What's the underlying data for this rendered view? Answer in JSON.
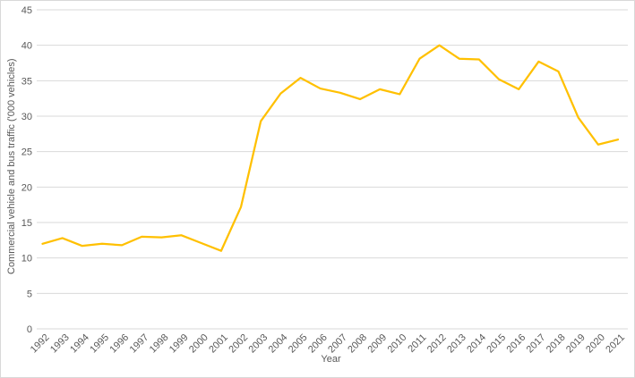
{
  "chart_data": {
    "type": "line",
    "xlabel": "Year",
    "ylabel": "Commercial vehicle and bus traffic ('000 vehicles)",
    "x": [
      "1992",
      "1993",
      "1994",
      "1995",
      "1996",
      "1997",
      "1998",
      "1999",
      "2000",
      "2001",
      "2002",
      "2003",
      "2004",
      "2005",
      "2006",
      "2007",
      "2008",
      "2009",
      "2010",
      "2011",
      "2012",
      "2013",
      "2014",
      "2015",
      "2016",
      "2017",
      "2018",
      "2019",
      "2020",
      "2021"
    ],
    "series": [
      {
        "name": "Commercial vehicle and bus traffic",
        "values": [
          12.0,
          12.8,
          11.7,
          12.0,
          11.8,
          13.0,
          12.9,
          13.2,
          12.1,
          11.0,
          17.2,
          29.3,
          33.2,
          35.4,
          33.9,
          33.3,
          32.4,
          33.8,
          33.1,
          38.1,
          40.0,
          38.1,
          38.0,
          35.2,
          33.8,
          37.7,
          36.3,
          29.8,
          26.0,
          26.7
        ],
        "color": "#FFC000"
      }
    ],
    "ylim": [
      0,
      45
    ],
    "yticks": [
      0,
      5,
      10,
      15,
      20,
      25,
      30,
      35,
      40,
      45
    ],
    "grid": "horizontal",
    "legend": "none"
  },
  "colors": {
    "line": "#FFC000",
    "gridline": "#d9d9d9",
    "axis_line": "#d9d9d9",
    "tick_text": "#595959",
    "axis_title_text": "#595959",
    "background": "#ffffff",
    "border": "#d9d9d9"
  }
}
